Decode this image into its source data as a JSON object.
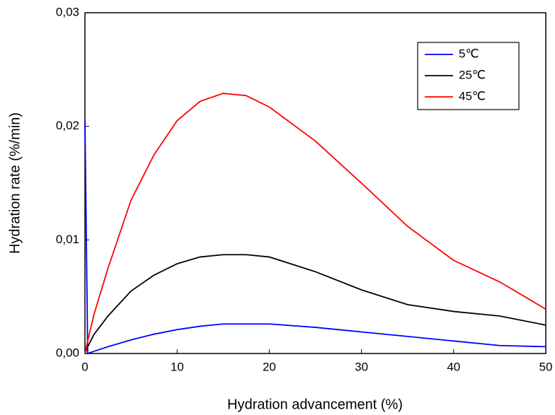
{
  "chart_data": {
    "type": "line",
    "x_label": "Hydration advancement (%)",
    "y_label": "Hydration rate (%/min)",
    "x": [
      0,
      0.3,
      1,
      2.5,
      5,
      7.5,
      10,
      12.5,
      15,
      17.5,
      20,
      25,
      30,
      35,
      40,
      45,
      50
    ],
    "series": [
      {
        "name": "5℃",
        "color": "#0000ff",
        "values": [
          0.0205,
          0,
          0.0002,
          0.0006,
          0.0012,
          0.0017,
          0.0021,
          0.0024,
          0.0026,
          0.0026,
          0.0026,
          0.0023,
          0.0019,
          0.0015,
          0.0011,
          0.0007,
          0.0006
        ]
      },
      {
        "name": "25℃",
        "color": "#000000",
        "values": [
          0,
          0.0006,
          0.0017,
          0.0033,
          0.0055,
          0.0069,
          0.0079,
          0.0085,
          0.0087,
          0.0087,
          0.0085,
          0.0072,
          0.0056,
          0.0043,
          0.0037,
          0.0033,
          0.0025
        ]
      },
      {
        "name": "45℃",
        "color": "#ff0000",
        "values": [
          0,
          0.0011,
          0.0035,
          0.0075,
          0.0135,
          0.0175,
          0.0205,
          0.0222,
          0.0229,
          0.0227,
          0.0217,
          0.0187,
          0.015,
          0.0112,
          0.0082,
          0.0063,
          0.0039
        ]
      }
    ],
    "xlim": [
      0,
      50
    ],
    "xticks": [
      0,
      10,
      20,
      30,
      40,
      50
    ],
    "ylim": [
      0,
      0.03
    ],
    "yticks": [
      {
        "value": 0,
        "label": "0,00"
      },
      {
        "value": 0.01,
        "label": "0,01"
      },
      {
        "value": 0.02,
        "label": "0,02"
      },
      {
        "value": 0.03,
        "label": "0,03"
      }
    ],
    "legend": "upper right",
    "grid": false
  }
}
